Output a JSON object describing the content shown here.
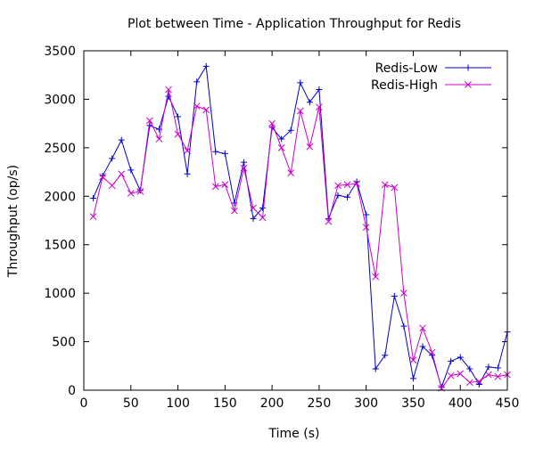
{
  "chart_data": {
    "type": "line",
    "title": "Plot between Time - Application Throughput for Redis",
    "xlabel": "Time (s)",
    "ylabel": "Throughput (op/s)",
    "xlim": [
      0,
      450
    ],
    "ylim": [
      0,
      3500
    ],
    "xticks": [
      0,
      50,
      100,
      150,
      200,
      250,
      300,
      350,
      400,
      450
    ],
    "yticks": [
      0,
      500,
      1000,
      1500,
      2000,
      2500,
      3000,
      3500
    ],
    "grid": false,
    "legend_position": "top-right",
    "x": [
      10,
      20,
      30,
      40,
      50,
      60,
      70,
      80,
      90,
      100,
      110,
      120,
      130,
      140,
      150,
      160,
      170,
      180,
      190,
      200,
      210,
      220,
      230,
      240,
      250,
      260,
      270,
      280,
      290,
      300,
      310,
      320,
      330,
      340,
      350,
      360,
      370,
      380,
      390,
      400,
      410,
      420,
      430,
      440,
      450
    ],
    "series": [
      {
        "name": "Redis-Low",
        "color": "#0000cc",
        "marker": "plus",
        "values": [
          1980,
          2210,
          2390,
          2580,
          2270,
          2060,
          2730,
          2690,
          3030,
          2820,
          2230,
          3180,
          3340,
          2460,
          2440,
          1930,
          2350,
          1770,
          1880,
          2710,
          2590,
          2680,
          3170,
          2970,
          3100,
          1770,
          2010,
          1990,
          2150,
          1810,
          220,
          360,
          970,
          660,
          120,
          450,
          360,
          30,
          300,
          340,
          220,
          60,
          240,
          230,
          600
        ]
      },
      {
        "name": "Redis-High",
        "color": "#cc00cc",
        "marker": "cross",
        "values": [
          1790,
          2200,
          2110,
          2230,
          2030,
          2050,
          2780,
          2590,
          3100,
          2640,
          2470,
          2930,
          2890,
          2100,
          2120,
          1850,
          2290,
          1880,
          1780,
          2750,
          2500,
          2240,
          2880,
          2510,
          2920,
          1740,
          2110,
          2120,
          2130,
          1680,
          1170,
          2120,
          2090,
          1000,
          310,
          640,
          390,
          20,
          150,
          170,
          80,
          90,
          160,
          140,
          160
        ]
      }
    ]
  }
}
